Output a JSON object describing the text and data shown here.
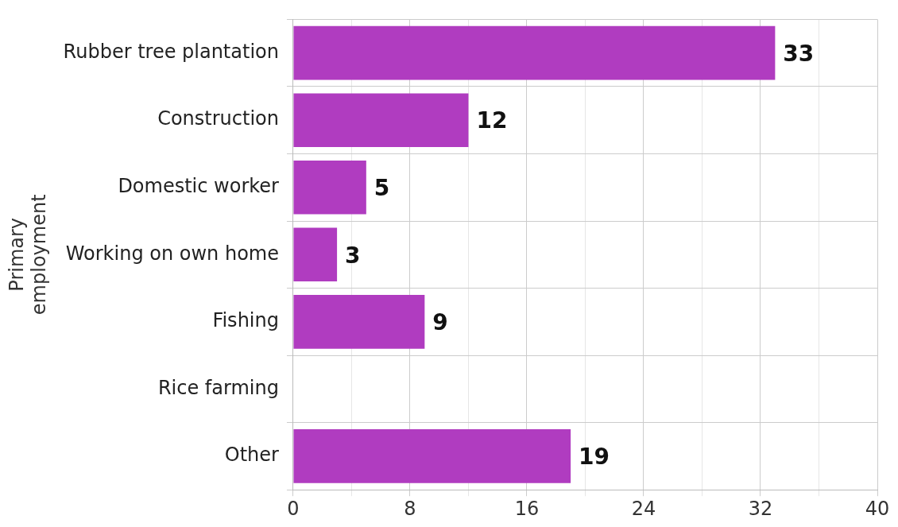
{
  "chart_data": {
    "type": "bar",
    "orientation": "horizontal",
    "ylabel": "Primary employment",
    "categories": [
      "Rubber tree plantation",
      "Construction",
      "Domestic worker",
      "Working on own home",
      "Fishing",
      "Rice farming",
      "Other"
    ],
    "values": [
      33,
      12,
      5,
      3,
      9,
      0,
      19
    ],
    "value_labels": [
      "33",
      "12",
      "5",
      "3",
      "9",
      null,
      "19"
    ],
    "color": "#b03cc0",
    "xlim": [
      0,
      40
    ],
    "xticks": [
      0,
      {
        "value": 4,
        "label": null
      },
      8,
      {
        "value": 12,
        "label": null
      },
      16,
      {
        "value": 20,
        "label": null
      },
      24,
      {
        "value": 28,
        "label": null
      },
      32,
      {
        "value": 36,
        "label": null
      },
      40
    ],
    "grid": true,
    "legend": false
  }
}
